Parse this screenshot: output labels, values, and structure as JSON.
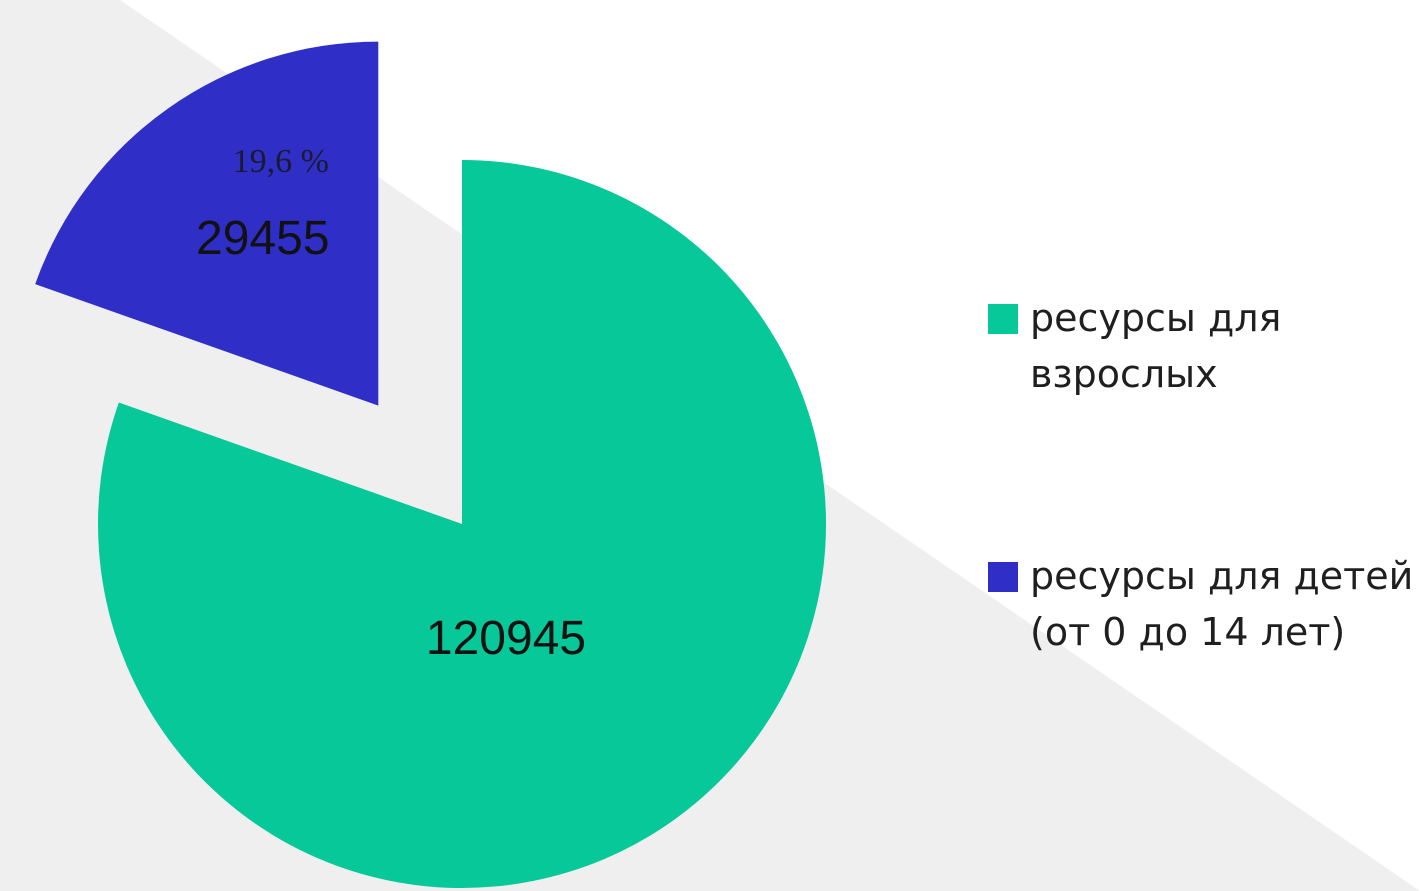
{
  "chart_data": {
    "type": "pie",
    "slices": [
      {
        "label": "ресурсы для взрослых",
        "value": 120945,
        "value_label": "120945",
        "color": "#06c899"
      },
      {
        "label": "ресурсы для детей (от 0 до 14 лет)",
        "value": 29455,
        "value_label": "29455",
        "percent_label": "19,6 %",
        "color": "#2f2fc8",
        "exploded": true
      }
    ],
    "legend": {
      "placement": "right",
      "items": [
        {
          "label_line1": "ресурсы для",
          "label_line2": "взрослых",
          "color": "#06c899"
        },
        {
          "label_line1": "ресурсы для детей",
          "label_line2": "(от 0 до 14 лет)",
          "color": "#2f2fc8"
        }
      ]
    }
  },
  "background": {
    "base": "#ffffff",
    "band": "#efefef"
  }
}
